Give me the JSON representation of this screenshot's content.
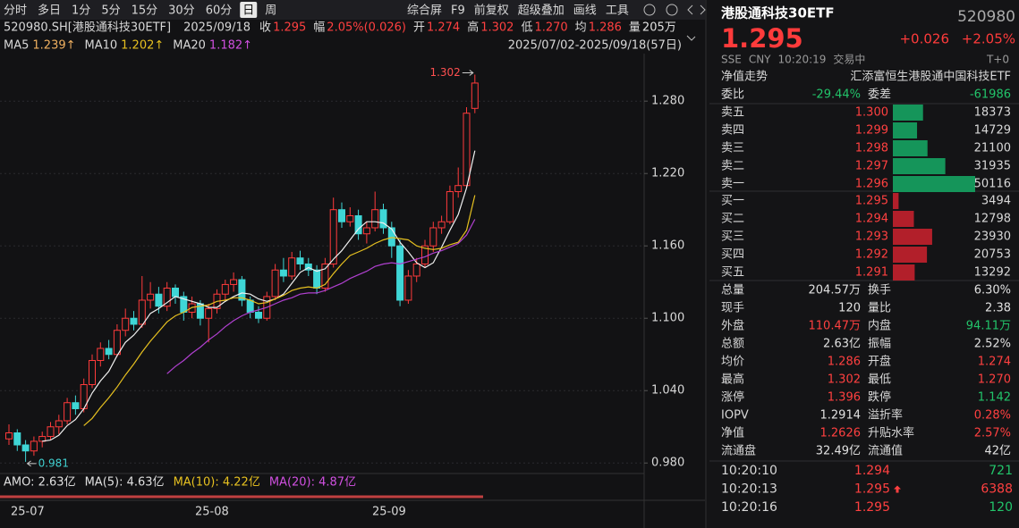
{
  "toolbar": {
    "periods": [
      {
        "text": "分时"
      },
      {
        "text": "多日"
      },
      {
        "text": "1分"
      },
      {
        "text": "5分"
      },
      {
        "text": "15分"
      },
      {
        "text": "30分"
      },
      {
        "text": "60分"
      },
      {
        "text": "日",
        "selected": true
      },
      {
        "text": "周"
      }
    ],
    "tools": [
      "综合屏",
      "F9",
      "前复权",
      "超级叠加",
      "画线",
      "工具"
    ]
  },
  "info": {
    "symbol": "520980.SH[港股通科技30ETF]",
    "date": "2025/09/18",
    "items": [
      {
        "label": "收",
        "value": "1.295",
        "color": "#ff4040"
      },
      {
        "label": "幅",
        "value": "2.05%(0.026)",
        "color": "#ff4040"
      },
      {
        "label": "开",
        "value": "1.274",
        "color": "#ff4040"
      },
      {
        "label": "高",
        "value": "1.302",
        "color": "#ff4040"
      },
      {
        "label": "低",
        "value": "1.270",
        "color": "#ff4040"
      },
      {
        "label": "均",
        "value": "1.286",
        "color": "#ff4040"
      },
      {
        "label": "量",
        "value": "205万",
        "color": "#e0e0e0"
      }
    ]
  },
  "ma_legend": [
    {
      "label": "MA5",
      "value": "1.239↑",
      "color": "#f0b060"
    },
    {
      "label": "MA10",
      "value": "1.202↑",
      "color": "#e6c020"
    },
    {
      "label": "MA20",
      "value": "1.182↑",
      "color": "#d050e0"
    }
  ],
  "range": "2025/07/02-2025/09/18(57日)",
  "kline": {
    "ylim": [
      0.975,
      1.312
    ],
    "yticks": [
      {
        "value": 0.98,
        "label": "0.980"
      },
      {
        "value": 1.04,
        "label": "1.040"
      },
      {
        "value": 1.1,
        "label": "1.100"
      },
      {
        "value": 1.16,
        "label": "1.160"
      },
      {
        "value": 1.22,
        "label": "1.220"
      },
      {
        "value": 1.28,
        "label": "1.280"
      }
    ],
    "up_color": "#ff3b3b",
    "down_color": "#3fd6d6",
    "candles": [
      [
        1.0,
        1.012,
        0.995,
        1.005
      ],
      [
        1.005,
        1.008,
        0.99,
        0.995
      ],
      [
        0.995,
        0.999,
        0.981,
        0.99
      ],
      [
        0.99,
        1.002,
        0.986,
        0.998
      ],
      [
        0.998,
        1.006,
        0.993,
        1.002
      ],
      [
        1.002,
        1.014,
        0.999,
        1.01
      ],
      [
        1.01,
        1.02,
        1.004,
        1.015
      ],
      [
        1.015,
        1.034,
        1.012,
        1.03
      ],
      [
        1.03,
        1.036,
        1.02,
        1.025
      ],
      [
        1.025,
        1.05,
        1.022,
        1.045
      ],
      [
        1.045,
        1.07,
        1.042,
        1.065
      ],
      [
        1.065,
        1.08,
        1.06,
        1.075
      ],
      [
        1.075,
        1.082,
        1.066,
        1.07
      ],
      [
        1.07,
        1.095,
        1.068,
        1.09
      ],
      [
        1.09,
        1.108,
        1.085,
        1.1
      ],
      [
        1.1,
        1.106,
        1.09,
        1.095
      ],
      [
        1.095,
        1.135,
        1.092,
        1.115
      ],
      [
        1.115,
        1.13,
        1.108,
        1.12
      ],
      [
        1.12,
        1.126,
        1.104,
        1.11
      ],
      [
        1.11,
        1.13,
        1.106,
        1.125
      ],
      [
        1.125,
        1.128,
        1.112,
        1.118
      ],
      [
        1.118,
        1.122,
        1.098,
        1.105
      ],
      [
        1.105,
        1.118,
        1.1,
        1.112
      ],
      [
        1.112,
        1.115,
        1.094,
        1.1
      ],
      [
        1.1,
        1.112,
        1.08,
        1.108
      ],
      [
        1.108,
        1.124,
        1.104,
        1.12
      ],
      [
        1.12,
        1.132,
        1.115,
        1.128
      ],
      [
        1.128,
        1.138,
        1.122,
        1.132
      ],
      [
        1.132,
        1.135,
        1.11,
        1.115
      ],
      [
        1.115,
        1.118,
        1.1,
        1.105
      ],
      [
        1.105,
        1.11,
        1.096,
        1.1
      ],
      [
        1.1,
        1.122,
        1.098,
        1.118
      ],
      [
        1.118,
        1.145,
        1.115,
        1.14
      ],
      [
        1.14,
        1.15,
        1.13,
        1.135
      ],
      [
        1.135,
        1.155,
        1.132,
        1.15
      ],
      [
        1.15,
        1.156,
        1.14,
        1.145
      ],
      [
        1.145,
        1.15,
        1.135,
        1.14
      ],
      [
        1.14,
        1.144,
        1.12,
        1.125
      ],
      [
        1.125,
        1.15,
        1.122,
        1.145
      ],
      [
        1.145,
        1.2,
        1.142,
        1.19
      ],
      [
        1.19,
        1.196,
        1.175,
        1.18
      ],
      [
        1.18,
        1.192,
        1.176,
        1.185
      ],
      [
        1.185,
        1.19,
        1.165,
        1.17
      ],
      [
        1.17,
        1.18,
        1.162,
        1.175
      ],
      [
        1.175,
        1.205,
        1.172,
        1.19
      ],
      [
        1.19,
        1.195,
        1.17,
        1.175
      ],
      [
        1.175,
        1.18,
        1.15,
        1.16
      ],
      [
        1.16,
        1.165,
        1.11,
        1.115
      ],
      [
        1.115,
        1.14,
        1.112,
        1.135
      ],
      [
        1.135,
        1.15,
        1.13,
        1.145
      ],
      [
        1.145,
        1.165,
        1.142,
        1.16
      ],
      [
        1.16,
        1.18,
        1.155,
        1.175
      ],
      [
        1.175,
        1.185,
        1.17,
        1.18
      ],
      [
        1.18,
        1.21,
        1.178,
        1.205
      ],
      [
        1.205,
        1.225,
        1.2,
        1.21
      ],
      [
        1.21,
        1.275,
        1.208,
        1.27
      ],
      [
        1.274,
        1.302,
        1.27,
        1.295
      ]
    ],
    "ma": [
      {
        "color": "#f0f0f0",
        "values": [
          null,
          null,
          null,
          null,
          0.998,
          0.999,
          1.003,
          1.011,
          1.016,
          1.025,
          1.038,
          1.048,
          1.056,
          1.069,
          1.08,
          1.086,
          1.094,
          1.104,
          1.108,
          1.113,
          1.118,
          1.116,
          1.114,
          1.112,
          1.109,
          1.109,
          1.114,
          1.118,
          1.121,
          1.12,
          1.116,
          1.114,
          1.116,
          1.12,
          1.129,
          1.138,
          1.142,
          1.139,
          1.141,
          1.149,
          1.156,
          1.165,
          1.174,
          1.18,
          1.18,
          1.179,
          1.174,
          1.163,
          1.155,
          1.146,
          1.142,
          1.146,
          1.159,
          1.173,
          1.186,
          1.208,
          1.239
        ]
      },
      {
        "color": "#e6c020",
        "values": [
          null,
          null,
          null,
          null,
          null,
          null,
          null,
          null,
          null,
          1.011,
          1.017,
          1.026,
          1.034,
          1.043,
          1.053,
          1.062,
          1.072,
          1.081,
          1.089,
          1.097,
          1.102,
          1.105,
          1.109,
          1.11,
          1.111,
          1.114,
          1.115,
          1.117,
          1.117,
          1.115,
          1.112,
          1.113,
          1.116,
          1.119,
          1.123,
          1.125,
          1.126,
          1.125,
          1.128,
          1.137,
          1.145,
          1.152,
          1.155,
          1.158,
          1.162,
          1.165,
          1.167,
          1.166,
          1.165,
          1.16,
          1.158,
          1.157,
          1.158,
          1.161,
          1.163,
          1.173,
          1.202
        ]
      },
      {
        "color": "#b040d0",
        "values": [
          null,
          null,
          null,
          null,
          null,
          null,
          null,
          null,
          null,
          null,
          null,
          null,
          null,
          null,
          null,
          null,
          null,
          null,
          null,
          1.054,
          1.06,
          1.065,
          1.071,
          1.076,
          1.082,
          1.087,
          1.093,
          1.098,
          1.102,
          1.105,
          1.107,
          1.109,
          1.112,
          1.115,
          1.117,
          1.12,
          1.121,
          1.121,
          1.123,
          1.126,
          1.129,
          1.133,
          1.136,
          1.139,
          1.143,
          1.145,
          1.146,
          1.145,
          1.147,
          1.149,
          1.151,
          1.154,
          1.156,
          1.159,
          1.162,
          1.169,
          1.182
        ]
      }
    ],
    "high_label": "1.302",
    "low_label": "0.981"
  },
  "amo": [
    "AMO: 2.63亿",
    "MA(5): 4.63亿",
    "MA(10): 4.22亿",
    "MA(20): 4.87亿"
  ],
  "x_labels": [
    "25-07",
    "25-08",
    "25-09"
  ],
  "quote": {
    "name": "港股通科技30ETF",
    "code": "520980",
    "price": "1.295",
    "change": "+0.026",
    "pct": "+2.05%",
    "meta": [
      "SSE",
      "CNY",
      "10:20:19",
      "交易中"
    ],
    "t0": "T+0",
    "nav_label": "净值走势",
    "fund": "汇添富恒生港股通中国科技ETF",
    "ratio": {
      "label": "委比",
      "value": "-29.44%",
      "diff_label": "委差",
      "diff": "-61986"
    },
    "sells": [
      {
        "label": "卖五",
        "price": "1.300",
        "volume": 18373
      },
      {
        "label": "卖四",
        "price": "1.299",
        "volume": 14729
      },
      {
        "label": "卖三",
        "price": "1.298",
        "volume": 21100
      },
      {
        "label": "卖二",
        "price": "1.297",
        "volume": 31935
      },
      {
        "label": "卖一",
        "price": "1.296",
        "volume": 50116
      }
    ],
    "buys": [
      {
        "label": "买一",
        "price": "1.295",
        "volume": 3494
      },
      {
        "label": "买二",
        "price": "1.294",
        "volume": 12798
      },
      {
        "label": "买三",
        "price": "1.293",
        "volume": 23930
      },
      {
        "label": "买四",
        "price": "1.292",
        "volume": 20753
      },
      {
        "label": "买五",
        "price": "1.291",
        "volume": 13292
      }
    ],
    "stats": [
      [
        {
          "t": "总量"
        },
        {
          "t": "204.57万",
          "c": "#e0e0e0"
        },
        {
          "t": "换手"
        },
        {
          "t": "6.30%",
          "c": "#e0e0e0"
        }
      ],
      [
        {
          "t": "现手"
        },
        {
          "t": "120",
          "c": "#e0e0e0"
        },
        {
          "t": "量比"
        },
        {
          "t": "2.38",
          "c": "#e0e0e0"
        }
      ],
      [
        {
          "t": "外盘"
        },
        {
          "t": "110.47万",
          "c": "#ff4040"
        },
        {
          "t": "内盘"
        },
        {
          "t": "94.11万",
          "c": "#22c46a"
        }
      ],
      [
        {
          "t": "总额"
        },
        {
          "t": "2.63亿",
          "c": "#e0e0e0"
        },
        {
          "t": "振幅"
        },
        {
          "t": "2.52%",
          "c": "#e0e0e0"
        }
      ],
      [
        {
          "t": "均价"
        },
        {
          "t": "1.286",
          "c": "#ff4040"
        },
        {
          "t": "开盘"
        },
        {
          "t": "1.274",
          "c": "#ff4040"
        }
      ],
      [
        {
          "t": "最高"
        },
        {
          "t": "1.302",
          "c": "#ff4040"
        },
        {
          "t": "最低"
        },
        {
          "t": "1.270",
          "c": "#ff4040"
        }
      ],
      [
        {
          "t": "涨停"
        },
        {
          "t": "1.396",
          "c": "#ff4040"
        },
        {
          "t": "跌停"
        },
        {
          "t": "1.142",
          "c": "#22c46a"
        }
      ],
      [
        {
          "t": "IOPV"
        },
        {
          "t": "1.2914",
          "c": "#e0e0e0"
        },
        {
          "t": "溢折率"
        },
        {
          "t": "0.28%",
          "c": "#ff4040"
        }
      ],
      [
        {
          "t": "净值"
        },
        {
          "t": "1.2626",
          "c": "#ff4040"
        },
        {
          "t": "升贴水率"
        },
        {
          "t": "2.57%",
          "c": "#ff4040"
        }
      ],
      [
        {
          "t": "流通盘"
        },
        {
          "t": "32.49亿",
          "c": "#e0e0e0"
        },
        {
          "t": "流通值"
        },
        {
          "t": "42亿",
          "c": "#e0e0e0"
        }
      ]
    ],
    "ticks": [
      {
        "time": "10:20:10",
        "price": "1.294",
        "volume": "721",
        "vc": "#22c46a"
      },
      {
        "time": "10:20:13",
        "price": "1.295",
        "volume": "6388",
        "vc": "#ff4040",
        "up": true
      },
      {
        "time": "10:20:16",
        "price": "1.295",
        "volume": "120",
        "vc": "#22c46a"
      }
    ]
  }
}
